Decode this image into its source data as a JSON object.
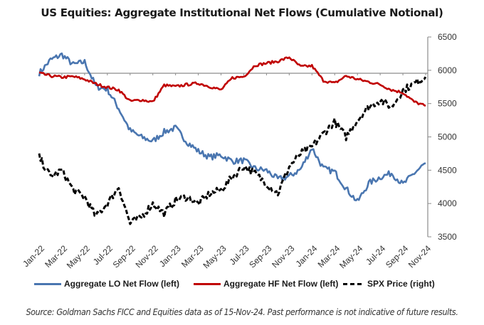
{
  "chart_data": {
    "type": "line",
    "title": "US Equities: Aggregate Institutional Net Flows (Cumulative Notional)",
    "xlabel": "",
    "ylabel_left": "",
    "ylabel_right": "",
    "x_tick_labels": [
      "Jan-22",
      "Mar-22",
      "May-22",
      "Jul-22",
      "Sep-22",
      "Nov-22",
      "Jan-23",
      "Mar-23",
      "May-23",
      "Jul-23",
      "Sep-23",
      "Nov-23",
      "Jan-24",
      "Mar-24",
      "May-24",
      "Jul-24",
      "Sep-24",
      "Nov-24"
    ],
    "x_range": [
      "Jan-22",
      "Nov-24"
    ],
    "y_right_ticks": [
      3500,
      4000,
      4500,
      5000,
      5500,
      6000,
      6500
    ],
    "y_right_range": [
      3500,
      6500
    ],
    "y_left_ticks": [],
    "left_axis_note": "Left axis unlabeled; flow series expressed relative to zero baseline in right-axis-equivalent units",
    "grid": false,
    "legend_position": "bottom",
    "x": [
      "Jan-22",
      "Feb-22",
      "Mar-22",
      "Apr-22",
      "May-22",
      "Jun-22",
      "Jul-22",
      "Aug-22",
      "Sep-22",
      "Oct-22",
      "Nov-22",
      "Dec-22",
      "Jan-23",
      "Feb-23",
      "Mar-23",
      "Apr-23",
      "May-23",
      "Jun-23",
      "Jul-23",
      "Aug-23",
      "Sep-23",
      "Oct-23",
      "Nov-23",
      "Dec-23",
      "Jan-24",
      "Feb-24",
      "Mar-24",
      "Apr-24",
      "May-24",
      "Jun-24",
      "Jul-24",
      "Aug-24",
      "Sep-24",
      "Oct-24",
      "Nov-24"
    ],
    "series": [
      {
        "name": "Aggregate LO Net Flow (left)",
        "axis": "left",
        "color": "#4a76b0",
        "values": [
          0,
          200,
          280,
          130,
          170,
          -200,
          -240,
          -530,
          -860,
          -960,
          -1020,
          -880,
          -820,
          -1030,
          -1170,
          -1260,
          -1230,
          -1320,
          -1310,
          -1430,
          -1460,
          -1590,
          -1550,
          -1440,
          -1120,
          -1430,
          -1480,
          -1730,
          -1930,
          -1650,
          -1560,
          -1500,
          -1670,
          -1500,
          -1350
        ]
      },
      {
        "name": "Aggregate HF Net Flow (left)",
        "axis": "left",
        "color": "#c00000",
        "values": [
          0,
          -40,
          -60,
          -50,
          -90,
          -160,
          -210,
          -250,
          -420,
          -400,
          -430,
          -180,
          -200,
          -170,
          -150,
          -200,
          -250,
          -70,
          -50,
          120,
          150,
          180,
          240,
          100,
          110,
          -110,
          -150,
          -40,
          -90,
          -130,
          -170,
          -250,
          -290,
          -430,
          -490
        ]
      },
      {
        "name": "SPX Price (right)",
        "axis": "right",
        "color": "#000000",
        "values": [
          4700,
          4400,
          4500,
          4200,
          4100,
          3800,
          4000,
          4250,
          3700,
          3800,
          4000,
          3850,
          4050,
          4100,
          4000,
          4150,
          4200,
          4400,
          4560,
          4450,
          4300,
          4150,
          4550,
          4750,
          4850,
          5050,
          5230,
          5000,
          5250,
          5450,
          5550,
          5450,
          5700,
          5800,
          5900
        ]
      }
    ]
  },
  "header": {
    "title": "US Equities: Aggregate Institutional Net Flows (Cumulative Notional)"
  },
  "legend": {
    "items": [
      {
        "label": "Aggregate LO Net Flow (left)",
        "color": "#4a76b0",
        "style": "solid"
      },
      {
        "label": "Aggregate HF Net Flow (left)",
        "color": "#c00000",
        "style": "solid"
      },
      {
        "label": "SPX Price (right)",
        "color": "#000000",
        "style": "dashed"
      }
    ]
  },
  "footer": {
    "source": "Source: Goldman Sachs FICC and Equities data as of 15-Nov-24. Past performance is not indicative of future results."
  }
}
